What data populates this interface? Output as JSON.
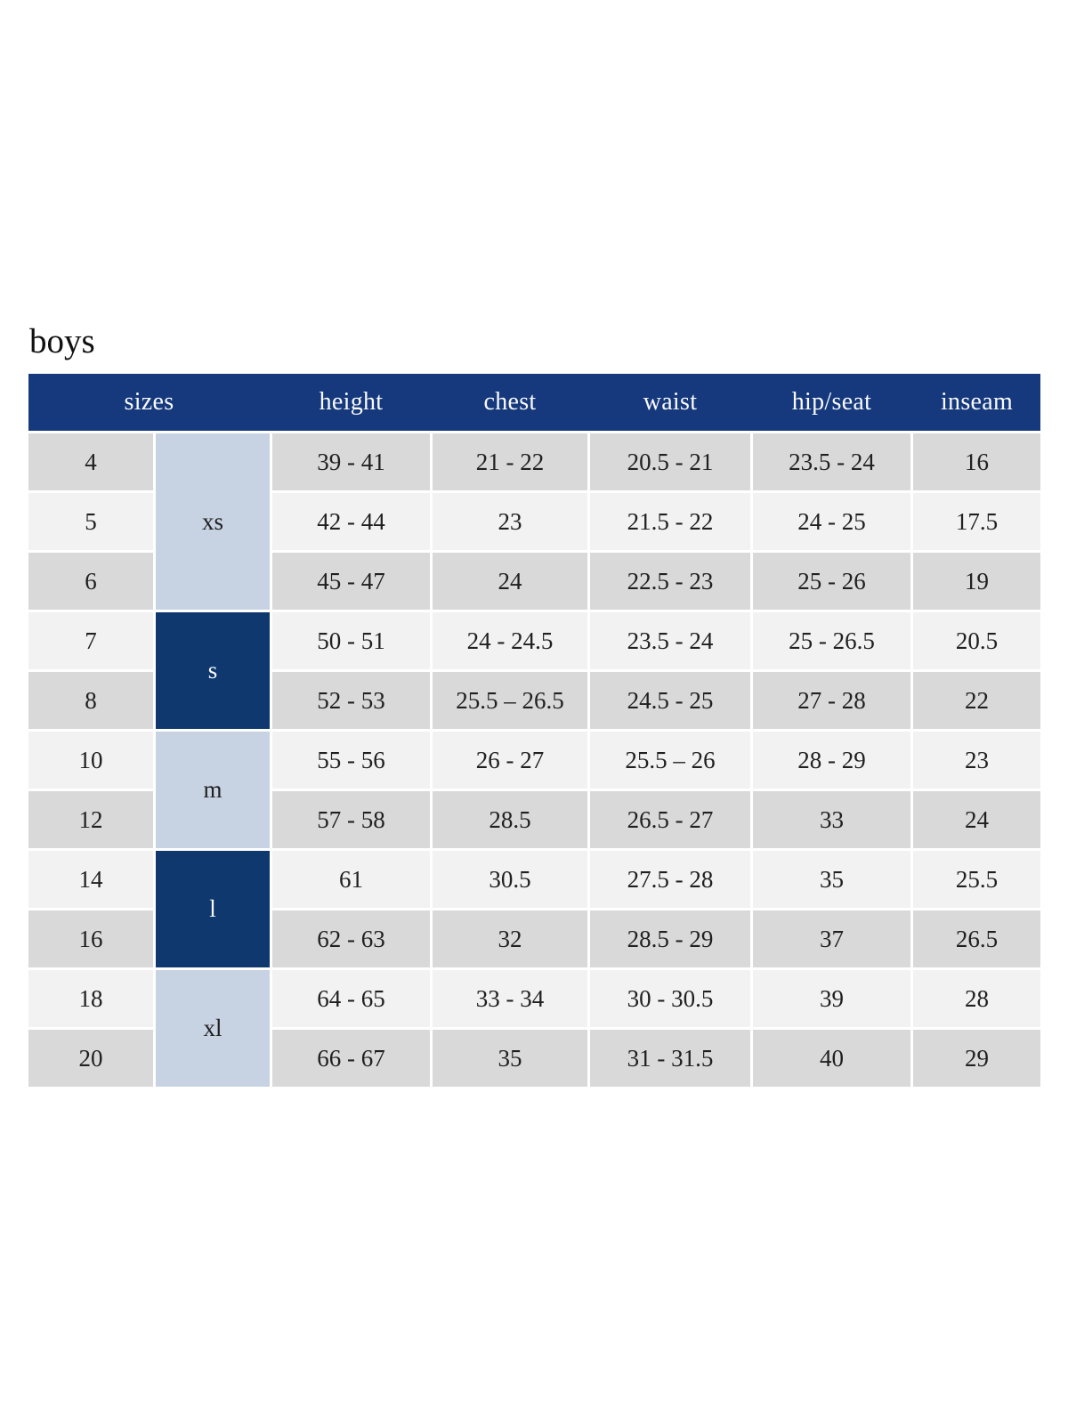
{
  "page": {
    "title": "boys"
  },
  "colors": {
    "header_bg": "#15397c",
    "header_text": "#fafafa",
    "group_dark_bg": "#0e386e",
    "group_light_bg": "#c7d3e3",
    "row_dark_bg": "#d9d9d9",
    "row_light_bg": "#f2f2f2",
    "cell_text": "#202020"
  },
  "table": {
    "headers": [
      "sizes",
      "height",
      "chest",
      "waist",
      "hip/seat",
      "inseam"
    ],
    "groups": [
      {
        "label": "xs",
        "rows": 3,
        "style": "light"
      },
      {
        "label": "s",
        "rows": 2,
        "style": "dark"
      },
      {
        "label": "m",
        "rows": 2,
        "style": "light"
      },
      {
        "label": "l",
        "rows": 2,
        "style": "dark"
      },
      {
        "label": "xl",
        "rows": 2,
        "style": "light"
      }
    ],
    "rows": [
      {
        "size": "4",
        "height": "39 - 41",
        "chest": "21 - 22",
        "waist": "20.5 - 21",
        "hip_seat": "23.5 - 24",
        "inseam": "16"
      },
      {
        "size": "5",
        "height": "42 - 44",
        "chest": "23",
        "waist": "21.5 - 22",
        "hip_seat": "24 - 25",
        "inseam": "17.5"
      },
      {
        "size": "6",
        "height": "45 - 47",
        "chest": "24",
        "waist": "22.5 - 23",
        "hip_seat": "25 - 26",
        "inseam": "19"
      },
      {
        "size": "7",
        "height": "50 - 51",
        "chest": "24 - 24.5",
        "waist": "23.5 - 24",
        "hip_seat": "25 - 26.5",
        "inseam": "20.5"
      },
      {
        "size": "8",
        "height": "52 - 53",
        "chest": "25.5 – 26.5",
        "waist": "24.5 - 25",
        "hip_seat": "27 - 28",
        "inseam": "22"
      },
      {
        "size": "10",
        "height": "55 - 56",
        "chest": "26 - 27",
        "waist": "25.5 – 26",
        "hip_seat": "28 - 29",
        "inseam": "23"
      },
      {
        "size": "12",
        "height": "57 - 58",
        "chest": "28.5",
        "waist": "26.5 - 27",
        "hip_seat": "33",
        "inseam": "24"
      },
      {
        "size": "14",
        "height": "61",
        "chest": "30.5",
        "waist": "27.5 - 28",
        "hip_seat": "35",
        "inseam": "25.5"
      },
      {
        "size": "16",
        "height": "62 - 63",
        "chest": "32",
        "waist": "28.5 - 29",
        "hip_seat": "37",
        "inseam": "26.5"
      },
      {
        "size": "18",
        "height": "64 - 65",
        "chest": "33 - 34",
        "waist": "30 - 30.5",
        "hip_seat": "39",
        "inseam": "28"
      },
      {
        "size": "20",
        "height": "66 - 67",
        "chest": "35",
        "waist": "31 - 31.5",
        "hip_seat": "40",
        "inseam": "29"
      }
    ]
  }
}
